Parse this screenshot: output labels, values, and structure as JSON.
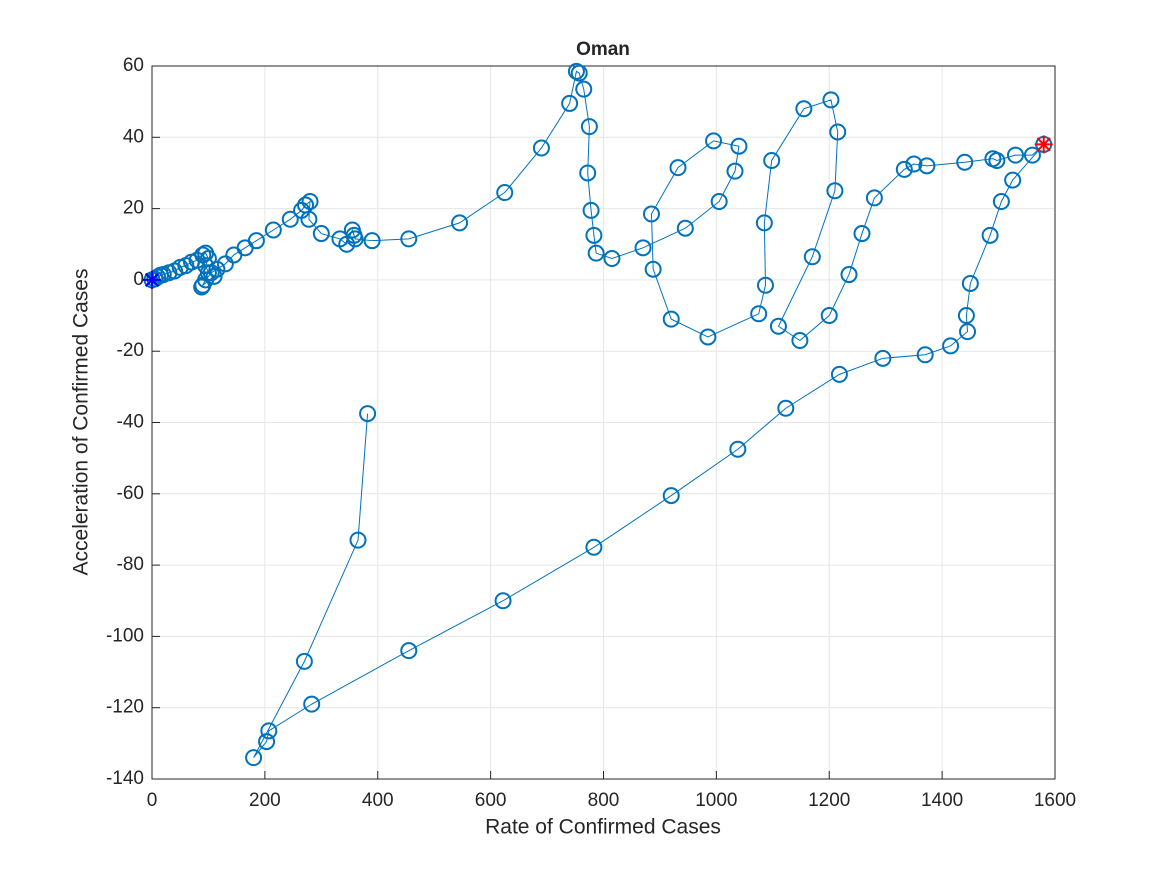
{
  "chart_data": {
    "type": "line",
    "title": "Oman",
    "x_label": "Rate of Confirmed Cases",
    "y_label": "Acceleration of Confirmed Cases",
    "xlim": [
      0,
      1600
    ],
    "xticks": [
      0,
      200,
      400,
      600,
      800,
      1000,
      1200,
      1400,
      1600
    ],
    "ylim": [
      -140,
      60
    ],
    "yticks": [
      -140,
      -120,
      -100,
      -80,
      -60,
      -40,
      -20,
      0,
      20,
      40,
      60
    ],
    "grid": true,
    "series": [
      {
        "color": "#0072bd",
        "x": [
          0,
          5,
          10,
          15,
          20,
          30,
          40,
          50,
          60,
          70,
          80,
          90,
          95,
          100,
          95,
          100,
          110,
          90,
          88,
          95,
          105,
          115,
          130,
          145,
          165,
          185,
          215,
          245,
          265,
          272,
          280,
          278,
          300,
          333,
          345,
          355,
          358,
          360,
          390,
          455,
          545,
          625,
          690,
          740,
          752,
          757,
          765,
          775,
          772,
          778,
          783,
          787,
          815,
          870,
          945,
          1005,
          1033,
          1040,
          995,
          932,
          885,
          888,
          920,
          985,
          1075,
          1087,
          1085,
          1098,
          1155,
          1203,
          1215,
          1210,
          1170,
          1110,
          1148,
          1200,
          1235,
          1258,
          1280,
          1333,
          1350,
          1373,
          1440,
          1490,
          1497,
          1530,
          1560,
          1580,
          1525,
          1505,
          1485,
          1450,
          1443,
          1445,
          1415,
          1370,
          1295,
          1218,
          1123,
          1038,
          920,
          783,
          622,
          455,
          283,
          207,
          203,
          180,
          270,
          365,
          382
        ],
        "values": [
          0,
          0.3,
          0.8,
          1.3,
          1.5,
          2,
          2.5,
          3.5,
          4,
          5,
          5.5,
          7,
          7.5,
          6,
          4,
          2,
          1,
          -1.5,
          -2,
          0,
          2,
          3,
          4.5,
          7,
          9,
          11,
          14,
          17,
          19.5,
          21,
          22,
          17,
          13,
          11.5,
          10,
          14,
          12.5,
          11.5,
          11,
          11.5,
          16,
          24.5,
          37,
          49.5,
          58.5,
          58,
          53.5,
          43,
          30,
          19.5,
          12.5,
          7.5,
          6,
          9,
          14.5,
          22,
          30.5,
          37.5,
          39,
          31.5,
          18.5,
          3,
          -11,
          -16,
          -9.5,
          -1.5,
          16,
          33.5,
          48,
          50.5,
          41.5,
          25,
          6.5,
          -13,
          -17,
          -10,
          1.5,
          13,
          23,
          31,
          32.5,
          32,
          33,
          34,
          33.5,
          35,
          35,
          38,
          28,
          22,
          12.5,
          -1,
          -10,
          -14.5,
          -18.5,
          -21,
          -22,
          -26.5,
          -36,
          -47.5,
          -60.5,
          -75,
          -90,
          -104,
          -119,
          -126.5,
          -129.5,
          -134,
          -107,
          -73,
          -37.5
        ]
      }
    ]
  }
}
